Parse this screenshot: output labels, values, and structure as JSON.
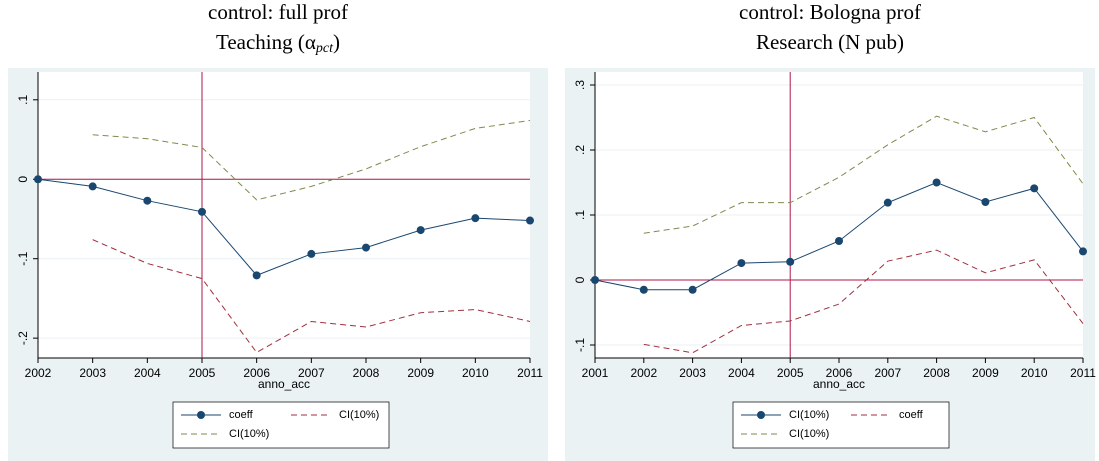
{
  "chart_data": [
    {
      "type": "line",
      "title": "control: full prof",
      "subtitle": [
        "Teaching (α",
        "pct",
        ")"
      ],
      "x_label": "anno_acc",
      "x": [
        2002,
        2003,
        2004,
        2005,
        2006,
        2007,
        2008,
        2009,
        2010,
        2011
      ],
      "series": [
        {
          "name": "coeff",
          "color": "#1a476f",
          "style": "solid",
          "marker": true,
          "values": [
            0,
            -0.009,
            -0.027,
            -0.041,
            -0.121,
            -0.094,
            -0.086,
            -0.064,
            -0.049,
            -0.052
          ]
        },
        {
          "name": "CI(10%)",
          "color": "#a0303c",
          "style": "dashed",
          "marker": false,
          "values": [
            null,
            -0.076,
            -0.106,
            -0.125,
            -0.218,
            -0.179,
            -0.186,
            -0.168,
            -0.164,
            -0.179
          ]
        },
        {
          "name": "CI(10%)",
          "color": "#7f8a4c",
          "style": "dashed",
          "marker": false,
          "values": [
            null,
            0.056,
            0.051,
            0.04,
            -0.026,
            -0.009,
            0.013,
            0.041,
            0.064,
            0.074
          ]
        }
      ],
      "xlim": [
        2002,
        2011
      ],
      "xticks": [
        2002,
        2003,
        2004,
        2005,
        2006,
        2007,
        2008,
        2009,
        2010,
        2011
      ],
      "ylim": [
        -0.225,
        0.135
      ],
      "yticks": [
        {
          "value": -0.2,
          "label": "-.2"
        },
        {
          "value": -0.1,
          "label": "-.1"
        },
        0,
        {
          "value": 0.1,
          "label": ".1"
        }
      ],
      "reference_lines": {
        "x": 2005,
        "y": 0,
        "color": "#b0164a"
      },
      "grid": true
    },
    {
      "type": "line",
      "title": "control: Bologna prof",
      "subtitle": [
        "Research (N pub)"
      ],
      "x_label": "anno_acc",
      "x": [
        2001,
        2002,
        2003,
        2004,
        2005,
        2006,
        2007,
        2008,
        2009,
        2010,
        2011
      ],
      "series": [
        {
          "name": "CI(10%)",
          "color": "#1a476f",
          "style": "solid",
          "marker": true,
          "values": [
            0,
            -0.015,
            -0.015,
            0.026,
            0.028,
            0.06,
            0.119,
            0.15,
            0.12,
            0.141,
            0.044
          ]
        },
        {
          "name": "coeff",
          "color": "#a0303c",
          "style": "dashed",
          "marker": false,
          "values": [
            null,
            -0.099,
            -0.112,
            -0.07,
            -0.063,
            -0.037,
            0.029,
            0.046,
            0.011,
            0.031,
            -0.067
          ]
        },
        {
          "name": "CI(10%)",
          "color": "#7f8a4c",
          "style": "dashed",
          "marker": false,
          "values": [
            null,
            0.072,
            0.083,
            0.119,
            0.119,
            0.158,
            0.208,
            0.252,
            0.228,
            0.25,
            0.148
          ]
        }
      ],
      "xlim": [
        2001,
        2011
      ],
      "xticks": [
        2001,
        2002,
        2003,
        2004,
        2005,
        2006,
        2007,
        2008,
        2009,
        2010,
        2011
      ],
      "ylim": [
        -0.12,
        0.32
      ],
      "yticks": [
        {
          "value": -0.1,
          "label": "-.1"
        },
        0,
        {
          "value": 0.1,
          "label": ".1"
        },
        {
          "value": 0.2,
          "label": ".2"
        },
        {
          "value": 0.3,
          "label": ".3"
        }
      ],
      "reference_lines": {
        "x": 2005,
        "y": 0,
        "color": "#b0164a"
      },
      "grid": true
    }
  ]
}
